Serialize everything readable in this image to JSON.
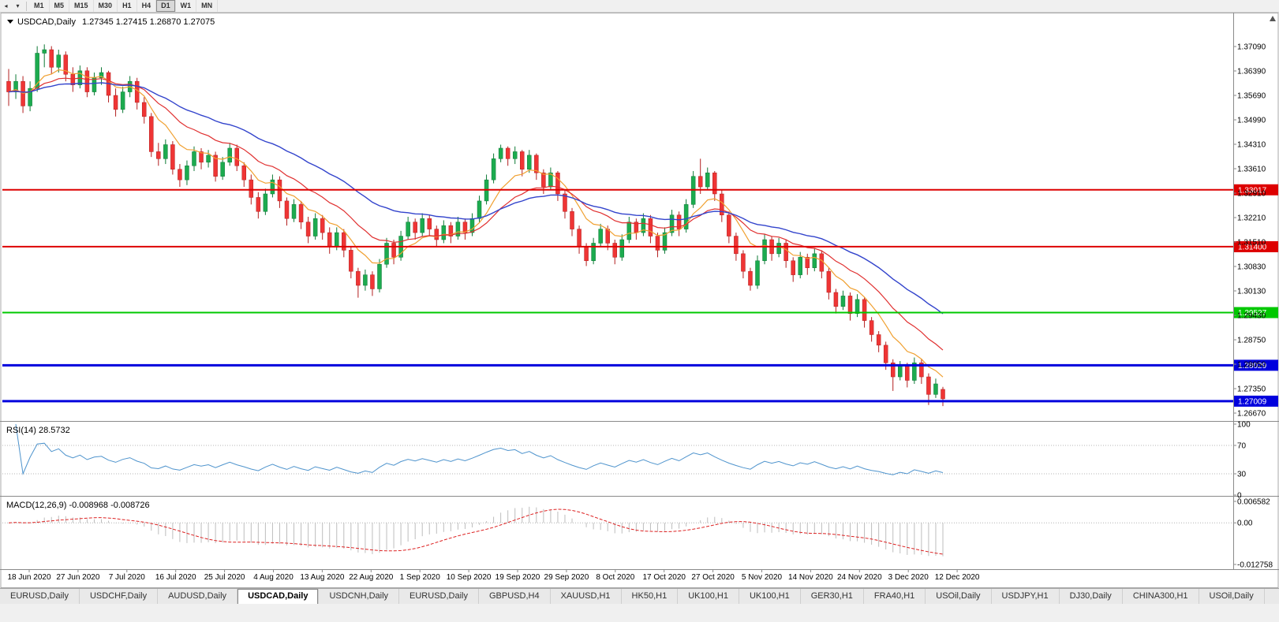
{
  "toolbar": {
    "nav_icons": [
      {
        "name": "scroll-left-icon",
        "glyph": "◂"
      },
      {
        "name": "dropdown-icon",
        "glyph": "▾"
      }
    ],
    "timeframes": [
      {
        "label": "M1",
        "active": false
      },
      {
        "label": "M5",
        "active": false
      },
      {
        "label": "M15",
        "active": false
      },
      {
        "label": "M30",
        "active": false
      },
      {
        "label": "H1",
        "active": false
      },
      {
        "label": "H4",
        "active": false
      },
      {
        "label": "D1",
        "active": true
      },
      {
        "label": "W1",
        "active": false
      },
      {
        "label": "MN",
        "active": false
      }
    ]
  },
  "chart": {
    "title_symbol": "USDCAD,Daily",
    "title_ohlc": "1.27345 1.27415 1.26870 1.27075",
    "price_axis_labels": [
      "1.37090",
      "1.36390",
      "1.35690",
      "1.34990",
      "1.34310",
      "1.33610",
      "1.32910",
      "1.32210",
      "1.31510",
      "1.30830",
      "1.30130",
      "1.29430",
      "1.28750",
      "1.28050",
      "1.27350",
      "1.26670"
    ],
    "hlines": [
      {
        "price": 1.33017,
        "label": "1.33017",
        "color": "#dd0000",
        "weight": 2
      },
      {
        "price": 1.314,
        "label": "1.31400",
        "color": "#dd0000",
        "weight": 2
      },
      {
        "price": 1.29527,
        "label": "1.29527",
        "color": "#00c800",
        "weight": 2
      },
      {
        "price": 1.28029,
        "label": "1.28029",
        "color": "#0000dd",
        "weight": 3
      },
      {
        "price": 1.27009,
        "label": "1.27009",
        "color": "#0000dd",
        "weight": 3
      }
    ],
    "colors": {
      "bull": "#1cab4f",
      "bull_dark": "#0e7a36",
      "bear": "#ef3535",
      "bear_dark": "#b32020",
      "ma_fast": "#f0a030",
      "ma_mid": "#e03030",
      "ma_slow": "#3344cc",
      "rsi": "#4f94cd",
      "macd_hist": "#bdbdbd",
      "macd_signal": "#dd2222"
    }
  },
  "indicators": {
    "rsi": {
      "label": "RSI(14) 28.5732",
      "period": 14,
      "axis": [
        "100",
        "70",
        "30",
        "0"
      ],
      "levels": [
        70,
        30
      ]
    },
    "macd": {
      "label": "MACD(12,26,9) -0.008968 -0.008726",
      "axis": [
        "0.006582",
        "0.00",
        "-0.012758"
      ],
      "range": {
        "max": 0.006582,
        "min": -0.012758
      }
    }
  },
  "date_axis": [
    "18 Jun 2020",
    "27 Jun 2020",
    "7 Jul 2020",
    "16 Jul 2020",
    "25 Jul 2020",
    "4 Aug 2020",
    "13 Aug 2020",
    "22 Aug 2020",
    "1 Sep 2020",
    "10 Sep 2020",
    "19 Sep 2020",
    "29 Sep 2020",
    "8 Oct 2020",
    "17 Oct 2020",
    "27 Oct 2020",
    "5 Nov 2020",
    "14 Nov 2020",
    "24 Nov 2020",
    "3 Dec 2020",
    "12 Dec 2020"
  ],
  "tabs": [
    {
      "label": "EURUSD,Daily",
      "active": false
    },
    {
      "label": "USDCHF,Daily",
      "active": false
    },
    {
      "label": "AUDUSD,Daily",
      "active": false
    },
    {
      "label": "USDCAD,Daily",
      "active": true
    },
    {
      "label": "USDCNH,Daily",
      "active": false
    },
    {
      "label": "EURUSD,Daily",
      "active": false
    },
    {
      "label": "GBPUSD,H4",
      "active": false
    },
    {
      "label": "XAUUSD,H1",
      "active": false
    },
    {
      "label": "HK50,H1",
      "active": false
    },
    {
      "label": "UK100,H1",
      "active": false
    },
    {
      "label": "UK100,H1",
      "active": false
    },
    {
      "label": "GER30,H1",
      "active": false
    },
    {
      "label": "FRA40,H1",
      "active": false
    },
    {
      "label": "USOil,Daily",
      "active": false
    },
    {
      "label": "USDJPY,H1",
      "active": false
    },
    {
      "label": "DJ30,Daily",
      "active": false
    },
    {
      "label": "CHINA300,H1",
      "active": false
    },
    {
      "label": "USOil,Daily",
      "active": false
    }
  ],
  "chart_data": {
    "type": "candlestick",
    "symbol": "USDCAD",
    "timeframe": "Daily",
    "last_ohlc": {
      "open": 1.27345,
      "high": 1.27415,
      "low": 1.2687,
      "close": 1.27075
    },
    "ma_periods": {
      "fast": 8,
      "mid": 17,
      "slow": 34
    },
    "ohlc": [
      [
        1.361,
        1.3645,
        1.354,
        1.358
      ],
      [
        1.358,
        1.363,
        1.356,
        1.361
      ],
      [
        1.361,
        1.3625,
        1.352,
        1.354
      ],
      [
        1.354,
        1.361,
        1.3525,
        1.359
      ],
      [
        1.359,
        1.371,
        1.358,
        1.369
      ],
      [
        1.369,
        1.3715,
        1.365,
        1.37
      ],
      [
        1.37,
        1.371,
        1.363,
        1.365
      ],
      [
        1.365,
        1.37,
        1.3635,
        1.3685
      ],
      [
        1.3685,
        1.3695,
        1.361,
        1.363
      ],
      [
        1.363,
        1.365,
        1.358,
        1.36
      ],
      [
        1.36,
        1.3655,
        1.359,
        1.364
      ],
      [
        1.364,
        1.365,
        1.3565,
        1.358
      ],
      [
        1.358,
        1.3635,
        1.357,
        1.362
      ],
      [
        1.362,
        1.365,
        1.36,
        1.3635
      ],
      [
        1.3635,
        1.364,
        1.355,
        1.357
      ],
      [
        1.357,
        1.359,
        1.351,
        1.353
      ],
      [
        1.353,
        1.3595,
        1.352,
        1.358
      ],
      [
        1.358,
        1.3625,
        1.3565,
        1.361
      ],
      [
        1.361,
        1.362,
        1.353,
        1.355
      ],
      [
        1.355,
        1.3565,
        1.349,
        1.351
      ],
      [
        1.351,
        1.352,
        1.3395,
        1.341
      ],
      [
        1.341,
        1.3435,
        1.337,
        1.339
      ],
      [
        1.339,
        1.3445,
        1.3375,
        1.343
      ],
      [
        1.343,
        1.344,
        1.3345,
        1.336
      ],
      [
        1.336,
        1.3375,
        1.331,
        1.333
      ],
      [
        1.333,
        1.3385,
        1.3315,
        1.337
      ],
      [
        1.337,
        1.3425,
        1.3355,
        1.341
      ],
      [
        1.341,
        1.342,
        1.336,
        1.338
      ],
      [
        1.338,
        1.3415,
        1.3365,
        1.34
      ],
      [
        1.34,
        1.341,
        1.3325,
        1.334
      ],
      [
        1.334,
        1.3395,
        1.333,
        1.338
      ],
      [
        1.338,
        1.3435,
        1.337,
        1.342
      ],
      [
        1.342,
        1.343,
        1.3355,
        1.337
      ],
      [
        1.337,
        1.338,
        1.331,
        1.333
      ],
      [
        1.333,
        1.3345,
        1.326,
        1.328
      ],
      [
        1.328,
        1.3295,
        1.322,
        1.324
      ],
      [
        1.324,
        1.3305,
        1.323,
        1.329
      ],
      [
        1.329,
        1.3345,
        1.328,
        1.333
      ],
      [
        1.333,
        1.334,
        1.325,
        1.327
      ],
      [
        1.327,
        1.328,
        1.32,
        1.322
      ],
      [
        1.322,
        1.3275,
        1.321,
        1.326
      ],
      [
        1.326,
        1.327,
        1.319,
        1.321
      ],
      [
        1.321,
        1.3225,
        1.315,
        1.317
      ],
      [
        1.317,
        1.3235,
        1.316,
        1.322
      ],
      [
        1.322,
        1.323,
        1.316,
        1.318
      ],
      [
        1.318,
        1.3195,
        1.312,
        1.314
      ],
      [
        1.314,
        1.3195,
        1.313,
        1.318
      ],
      [
        1.318,
        1.319,
        1.311,
        1.313
      ],
      [
        1.313,
        1.314,
        1.305,
        1.307
      ],
      [
        1.307,
        1.308,
        1.2995,
        1.303
      ],
      [
        1.303,
        1.3075,
        1.3015,
        1.306
      ],
      [
        1.306,
        1.307,
        1.3,
        1.302
      ],
      [
        1.302,
        1.3105,
        1.301,
        1.309
      ],
      [
        1.309,
        1.3165,
        1.308,
        1.315
      ],
      [
        1.315,
        1.316,
        1.309,
        1.311
      ],
      [
        1.311,
        1.3185,
        1.31,
        1.317
      ],
      [
        1.317,
        1.3225,
        1.316,
        1.321
      ],
      [
        1.321,
        1.322,
        1.316,
        1.318
      ],
      [
        1.318,
        1.3235,
        1.317,
        1.322
      ],
      [
        1.322,
        1.323,
        1.317,
        1.319
      ],
      [
        1.319,
        1.32,
        1.314,
        1.316
      ],
      [
        1.316,
        1.3215,
        1.315,
        1.32
      ],
      [
        1.32,
        1.321,
        1.315,
        1.317
      ],
      [
        1.317,
        1.3225,
        1.316,
        1.321
      ],
      [
        1.321,
        1.322,
        1.316,
        1.318
      ],
      [
        1.318,
        1.3235,
        1.317,
        1.322
      ],
      [
        1.322,
        1.3285,
        1.321,
        1.327
      ],
      [
        1.327,
        1.3345,
        1.326,
        1.333
      ],
      [
        1.333,
        1.3405,
        1.332,
        1.339
      ],
      [
        1.339,
        1.343,
        1.338,
        1.342
      ],
      [
        1.342,
        1.3425,
        1.337,
        1.339
      ],
      [
        1.339,
        1.3425,
        1.3375,
        1.341
      ],
      [
        1.341,
        1.3415,
        1.334,
        1.336
      ],
      [
        1.336,
        1.3415,
        1.335,
        1.34
      ],
      [
        1.34,
        1.3405,
        1.333,
        1.335
      ],
      [
        1.335,
        1.336,
        1.329,
        1.331
      ],
      [
        1.331,
        1.3365,
        1.33,
        1.335
      ],
      [
        1.335,
        1.3355,
        1.327,
        1.329
      ],
      [
        1.329,
        1.33,
        1.322,
        1.324
      ],
      [
        1.324,
        1.325,
        1.317,
        1.319
      ],
      [
        1.319,
        1.32,
        1.312,
        1.314
      ],
      [
        1.314,
        1.315,
        1.3085,
        1.31
      ],
      [
        1.31,
        1.3165,
        1.309,
        1.315
      ],
      [
        1.315,
        1.3205,
        1.314,
        1.319
      ],
      [
        1.319,
        1.32,
        1.313,
        1.315
      ],
      [
        1.315,
        1.316,
        1.309,
        1.311
      ],
      [
        1.311,
        1.3175,
        1.31,
        1.316
      ],
      [
        1.316,
        1.3225,
        1.315,
        1.321
      ],
      [
        1.321,
        1.322,
        1.316,
        1.318
      ],
      [
        1.318,
        1.3235,
        1.317,
        1.322
      ],
      [
        1.322,
        1.323,
        1.315,
        1.317
      ],
      [
        1.317,
        1.318,
        1.311,
        1.313
      ],
      [
        1.313,
        1.3195,
        1.312,
        1.318
      ],
      [
        1.318,
        1.3245,
        1.317,
        1.323
      ],
      [
        1.323,
        1.324,
        1.317,
        1.319
      ],
      [
        1.319,
        1.3275,
        1.318,
        1.326
      ],
      [
        1.326,
        1.3355,
        1.325,
        1.334
      ],
      [
        1.334,
        1.339,
        1.329,
        1.331
      ],
      [
        1.331,
        1.3365,
        1.33,
        1.335
      ],
      [
        1.335,
        1.3355,
        1.327,
        1.329
      ],
      [
        1.329,
        1.33,
        1.321,
        1.323
      ],
      [
        1.323,
        1.324,
        1.315,
        1.317
      ],
      [
        1.317,
        1.318,
        1.31,
        1.312
      ],
      [
        1.312,
        1.313,
        1.305,
        1.307
      ],
      [
        1.307,
        1.308,
        1.3015,
        1.303
      ],
      [
        1.303,
        1.3115,
        1.302,
        1.31
      ],
      [
        1.31,
        1.3175,
        1.309,
        1.316
      ],
      [
        1.316,
        1.317,
        1.31,
        1.312
      ],
      [
        1.312,
        1.3165,
        1.311,
        1.315
      ],
      [
        1.315,
        1.316,
        1.308,
        1.31
      ],
      [
        1.31,
        1.311,
        1.304,
        1.306
      ],
      [
        1.306,
        1.3125,
        1.305,
        1.311
      ],
      [
        1.311,
        1.312,
        1.306,
        1.308
      ],
      [
        1.308,
        1.3135,
        1.307,
        1.312
      ],
      [
        1.312,
        1.313,
        1.305,
        1.307
      ],
      [
        1.307,
        1.308,
        1.299,
        1.301
      ],
      [
        1.301,
        1.302,
        1.295,
        1.297
      ],
      [
        1.297,
        1.3015,
        1.296,
        1.3
      ],
      [
        1.3,
        1.301,
        1.293,
        1.295
      ],
      [
        1.295,
        1.3005,
        1.294,
        1.299
      ],
      [
        1.299,
        1.2995,
        1.291,
        1.293
      ],
      [
        1.293,
        1.294,
        1.287,
        1.289
      ],
      [
        1.289,
        1.29,
        1.284,
        1.286
      ],
      [
        1.286,
        1.287,
        1.279,
        1.281
      ],
      [
        1.281,
        1.282,
        1.273,
        1.277
      ],
      [
        1.277,
        1.2815,
        1.276,
        1.28
      ],
      [
        1.28,
        1.281,
        1.274,
        1.276
      ],
      [
        1.276,
        1.2825,
        1.275,
        1.281
      ],
      [
        1.281,
        1.282,
        1.275,
        1.277
      ],
      [
        1.277,
        1.278,
        1.269,
        1.272
      ],
      [
        1.272,
        1.2765,
        1.271,
        1.275
      ],
      [
        1.27345,
        1.27415,
        1.2687,
        1.27075
      ]
    ]
  }
}
